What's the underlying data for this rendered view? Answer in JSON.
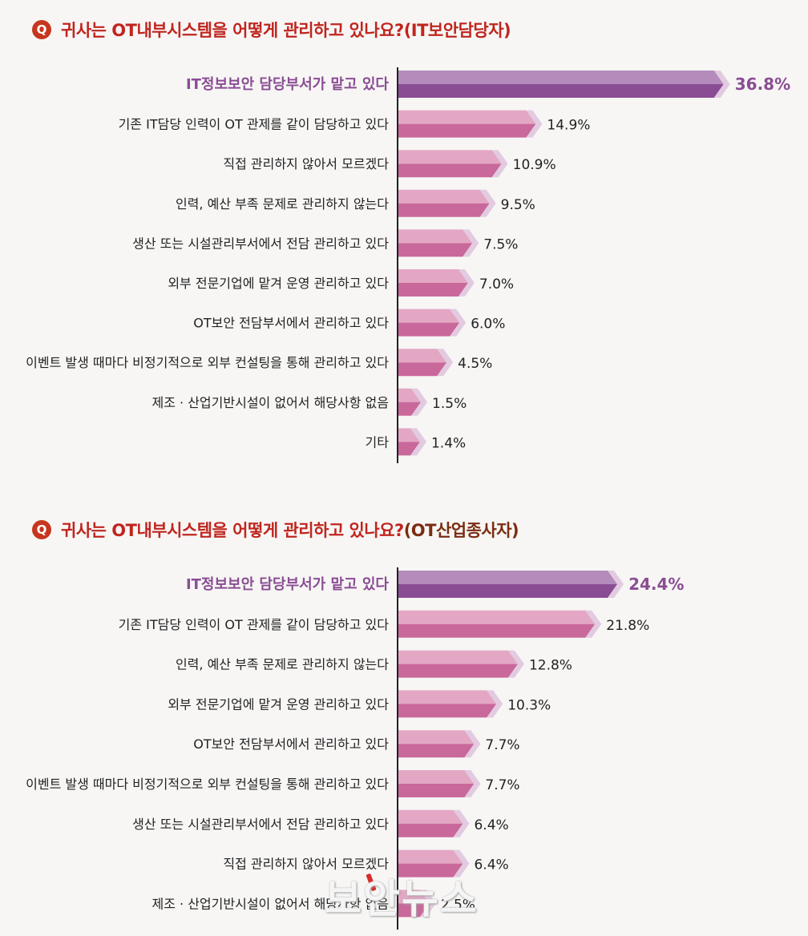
{
  "colors": {
    "highlight": "#8a4d93",
    "highlight_top": "#b48bbb",
    "bar": "#c9689a",
    "bar_top": "#e3a7c4",
    "bar_side": "#e2cbe0",
    "label_highlight": "#8a4d93",
    "label": "#222222"
  },
  "q_badge": "Q",
  "chart_data": [
    {
      "type": "bar",
      "title": "귀사는 OT내부시스템을 어떻게 관리하고 있나요?",
      "title_suffix": "(IT보안담당자)",
      "categories": [
        "IT정보보안 담당부서가 맡고 있다",
        "기존 IT담당 인력이 OT 관제를 같이 담당하고 있다",
        "직접 관리하지 않아서 모르겠다",
        "인력, 예산 부족 문제로 관리하지 않는다",
        "생산 또는 시설관리부서에서 전담 관리하고 있다",
        "외부 전문기업에 맡겨 운영 관리하고 있다",
        "OT보안 전담부서에서 관리하고 있다",
        "이벤트 발생 때마다 비정기적으로 외부 컨설팅을 통해 관리하고 있다",
        "제조 · 산업기반시설이 없어서 해당사항 없음",
        "기타"
      ],
      "values": [
        36.8,
        14.9,
        10.9,
        9.5,
        7.5,
        7.0,
        6.0,
        4.5,
        1.5,
        1.4
      ],
      "value_labels": [
        "36.8%",
        "14.9%",
        "10.9%",
        "9.5%",
        "7.5%",
        "7.0%",
        "6.0%",
        "4.5%",
        "1.5%",
        "1.4%"
      ],
      "highlight_index": 0
    },
    {
      "type": "bar",
      "title": "귀사는 OT내부시스템을 어떻게 관리하고 있나요?",
      "title_suffix": "(OT산업종사자)",
      "categories": [
        "IT정보보안 담당부서가 맡고 있다",
        "기존 IT담당 인력이 OT 관제를 같이 담당하고 있다",
        "인력, 예산 부족 문제로 관리하지 않는다",
        "외부 전문기업에 맡겨 운영 관리하고 있다",
        "OT보안 전담부서에서 관리하고 있다",
        "이벤트 발생 때마다 비정기적으로 외부 컨설팅을 통해 관리하고 있다",
        "생산 또는 시설관리부서에서 전담 관리하고 있다",
        "직접 관리하지 않아서 모르겠다",
        "제조 · 산업기반시설이 없어서 해당사항 없음"
      ],
      "values": [
        24.4,
        21.8,
        12.8,
        10.3,
        7.7,
        7.7,
        6.4,
        6.4,
        2.5
      ],
      "value_labels": [
        "24.4%",
        "21.8%",
        "12.8%",
        "10.3%",
        "7.7%",
        "7.7%",
        "6.4%",
        "6.4%",
        "2.5%"
      ],
      "highlight_index": 0
    }
  ],
  "watermark": "보안뉴스"
}
